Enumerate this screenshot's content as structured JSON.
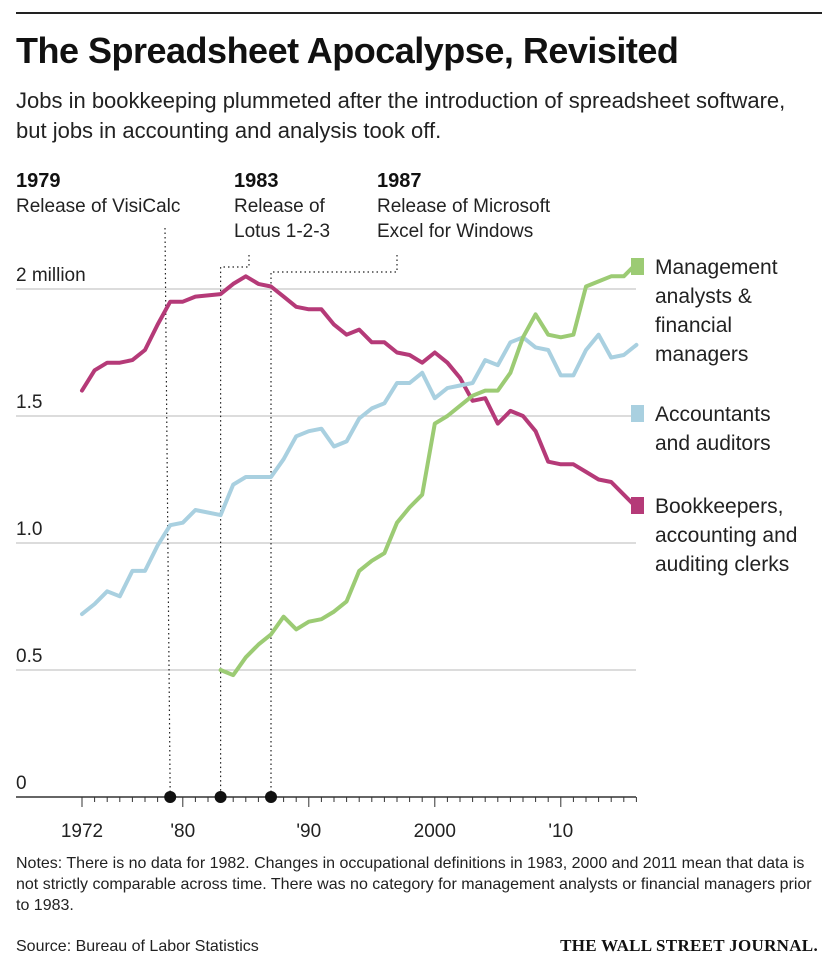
{
  "header": {
    "title": "The Spreadsheet Apocalypse, Revisited",
    "subtitle": "Jobs in bookkeeping plummeted after the introduction of spreadsheet software, but jobs in accounting and analysis took off."
  },
  "events": [
    {
      "year_label": "1979",
      "label": "Release of VisiCalc"
    },
    {
      "year_label": "1983",
      "label": "Release of\nLotus 1-2-3"
    },
    {
      "year_label": "1987",
      "label": "Release of Microsoft\nExcel for Windows"
    }
  ],
  "footer": {
    "notes": "Notes: There is no data for 1982. Changes in occupational definitions in 1983, 2000 and 2011 mean that data is not strictly comparable across time. There was no category for management analysts or financial managers prior to 1983.",
    "source": "Source: Bureau of Labor Statistics",
    "publisher": "THE WALL STREET JOURNAL."
  },
  "chart_data": {
    "type": "line",
    "ylim": [
      0,
      2.1
    ],
    "xlim": [
      1972,
      2016
    ],
    "y_ticks": [
      {
        "value": 0,
        "label": "0"
      },
      {
        "value": 0.5,
        "label": "0.5"
      },
      {
        "value": 1.0,
        "label": "1.0"
      },
      {
        "value": 1.5,
        "label": "1.5"
      },
      {
        "value": 2.0,
        "label": "2 million"
      }
    ],
    "x_ticks": [
      {
        "value": 1972,
        "label": "1972"
      },
      {
        "value": 1980,
        "label": "'80"
      },
      {
        "value": 1990,
        "label": "'90"
      },
      {
        "value": 2000,
        "label": "2000"
      },
      {
        "value": 2010,
        "label": "'10"
      }
    ],
    "grid": true,
    "event_years": [
      1979,
      1983,
      1987
    ],
    "series": [
      {
        "name": "Bookkeepers, accounting and auditing clerks",
        "color": "#b53a78",
        "x": [
          1972,
          1973,
          1974,
          1975,
          1976,
          1977,
          1978,
          1979,
          1980,
          1981,
          1983,
          1984,
          1985,
          1986,
          1987,
          1988,
          1989,
          1990,
          1991,
          1992,
          1993,
          1994,
          1995,
          1996,
          1997,
          1998,
          1999,
          2000,
          2001,
          2002,
          2003,
          2004,
          2005,
          2006,
          2007,
          2008,
          2009,
          2010,
          2011,
          2012,
          2013,
          2014,
          2015,
          2016
        ],
        "values": [
          1.6,
          1.68,
          1.71,
          1.71,
          1.72,
          1.76,
          1.86,
          1.95,
          1.95,
          1.97,
          1.98,
          2.02,
          2.05,
          2.02,
          2.01,
          1.97,
          1.93,
          1.92,
          1.92,
          1.86,
          1.82,
          1.84,
          1.79,
          1.79,
          1.75,
          1.74,
          1.71,
          1.75,
          1.71,
          1.65,
          1.56,
          1.57,
          1.47,
          1.52,
          1.5,
          1.44,
          1.32,
          1.31,
          1.31,
          1.28,
          1.25,
          1.24,
          1.19,
          1.14
        ]
      },
      {
        "name": "Accountants and auditors",
        "color": "#a9d0e0",
        "x": [
          1972,
          1973,
          1974,
          1975,
          1976,
          1977,
          1978,
          1979,
          1980,
          1981,
          1983,
          1984,
          1985,
          1986,
          1987,
          1988,
          1989,
          1990,
          1991,
          1992,
          1993,
          1994,
          1995,
          1996,
          1997,
          1998,
          1999,
          2000,
          2001,
          2002,
          2003,
          2004,
          2005,
          2006,
          2007,
          2008,
          2009,
          2010,
          2011,
          2012,
          2013,
          2014,
          2015,
          2016
        ],
        "values": [
          0.72,
          0.76,
          0.81,
          0.79,
          0.89,
          0.89,
          0.99,
          1.07,
          1.08,
          1.13,
          1.11,
          1.23,
          1.26,
          1.26,
          1.26,
          1.33,
          1.42,
          1.44,
          1.45,
          1.38,
          1.4,
          1.49,
          1.53,
          1.55,
          1.63,
          1.63,
          1.67,
          1.57,
          1.61,
          1.62,
          1.63,
          1.72,
          1.7,
          1.79,
          1.81,
          1.77,
          1.76,
          1.66,
          1.66,
          1.76,
          1.82,
          1.73,
          1.74,
          1.78
        ]
      },
      {
        "name": "Management analysts & financial managers",
        "color": "#9ccb74",
        "x": [
          1983,
          1984,
          1985,
          1986,
          1987,
          1988,
          1989,
          1990,
          1991,
          1992,
          1993,
          1994,
          1995,
          1996,
          1997,
          1998,
          1999,
          2000,
          2001,
          2002,
          2003,
          2004,
          2005,
          2006,
          2007,
          2008,
          2009,
          2010,
          2011,
          2012,
          2013,
          2014,
          2015,
          2016
        ],
        "values": [
          0.5,
          0.48,
          0.55,
          0.6,
          0.64,
          0.71,
          0.66,
          0.69,
          0.7,
          0.73,
          0.77,
          0.89,
          0.93,
          0.96,
          1.08,
          1.14,
          1.19,
          1.47,
          1.5,
          1.54,
          1.58,
          1.6,
          1.6,
          1.67,
          1.81,
          1.9,
          1.82,
          1.81,
          1.82,
          2.01,
          2.03,
          2.05,
          2.05,
          2.1
        ]
      }
    ],
    "legend": {
      "placement": "right",
      "items": [
        {
          "label": "Management analysts & financial managers",
          "lines": [
            "Management",
            "analysts &",
            "financial",
            "managers"
          ],
          "color": "#9ccb74"
        },
        {
          "label": "Accountants and auditors",
          "lines": [
            "Accountants",
            "and auditors"
          ],
          "color": "#a9d0e0"
        },
        {
          "label": "Bookkeepers, accounting and auditing clerks",
          "lines": [
            "Bookkeepers,",
            "accounting and",
            "auditing clerks"
          ],
          "color": "#b53a78"
        }
      ]
    }
  }
}
